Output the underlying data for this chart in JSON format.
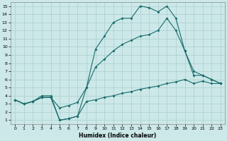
{
  "background_color": "#cce8e8",
  "grid_color": "#aacece",
  "line_color": "#1a6b6b",
  "xlabel": "Humidex (Indice chaleur)",
  "xlim": [
    -0.5,
    23.5
  ],
  "ylim": [
    0.5,
    15.5
  ],
  "xticks": [
    0,
    1,
    2,
    3,
    4,
    5,
    6,
    7,
    8,
    9,
    10,
    11,
    12,
    13,
    14,
    15,
    16,
    17,
    18,
    19,
    20,
    21,
    22,
    23
  ],
  "yticks": [
    1,
    2,
    3,
    4,
    5,
    6,
    7,
    8,
    9,
    10,
    11,
    12,
    13,
    14,
    15
  ],
  "line_min_x": [
    0,
    1,
    2,
    3,
    4,
    5,
    6,
    7,
    8,
    9,
    10,
    11,
    12,
    13,
    14,
    15,
    16,
    17,
    18,
    19,
    20,
    21,
    22,
    23
  ],
  "line_min_y": [
    3.5,
    3.0,
    3.3,
    3.8,
    3.8,
    1.0,
    1.2,
    1.5,
    3.3,
    3.5,
    3.8,
    4.0,
    4.3,
    4.5,
    4.8,
    5.0,
    5.2,
    5.5,
    5.7,
    6.0,
    5.5,
    5.8,
    5.5,
    5.5
  ],
  "line_avg_x": [
    0,
    1,
    2,
    3,
    4,
    5,
    6,
    7,
    8,
    9,
    10,
    11,
    12,
    13,
    14,
    15,
    16,
    17,
    18,
    19,
    20,
    21,
    22,
    23
  ],
  "line_avg_y": [
    3.5,
    3.0,
    3.3,
    3.8,
    3.8,
    2.5,
    2.8,
    3.2,
    5.0,
    7.5,
    8.5,
    9.5,
    10.3,
    10.8,
    11.3,
    11.5,
    12.0,
    13.5,
    12.0,
    9.5,
    7.0,
    6.5,
    6.0,
    5.5
  ],
  "line_max_x": [
    0,
    1,
    2,
    3,
    4,
    5,
    6,
    7,
    8,
    9,
    10,
    11,
    12,
    13,
    14,
    15,
    16,
    17,
    18,
    19,
    20,
    21,
    22,
    23
  ],
  "line_max_y": [
    3.5,
    3.0,
    3.3,
    4.0,
    4.0,
    1.0,
    1.2,
    1.5,
    5.0,
    9.7,
    11.3,
    13.0,
    13.5,
    13.5,
    15.0,
    14.8,
    14.3,
    15.0,
    13.5,
    9.5,
    6.5,
    6.5,
    6.0,
    5.5
  ]
}
